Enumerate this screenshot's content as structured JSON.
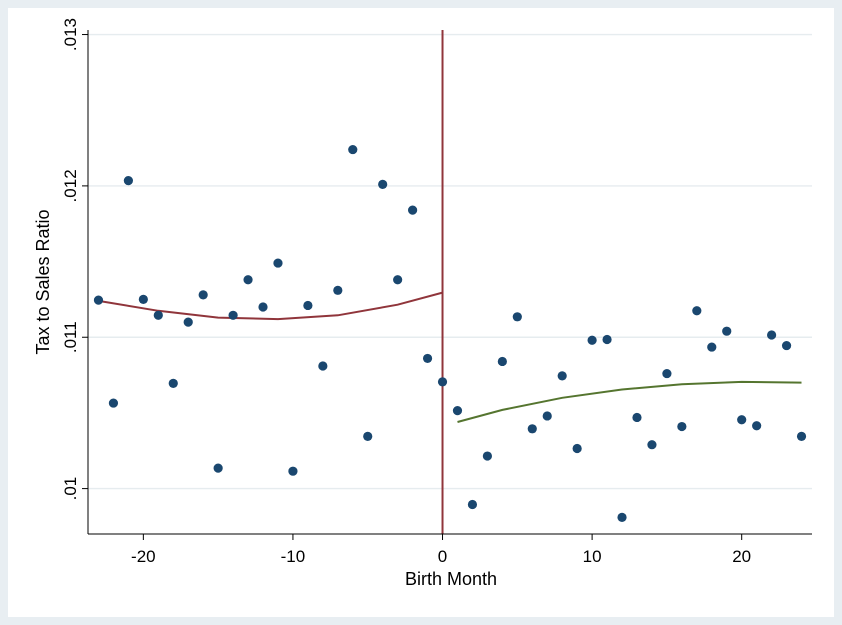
{
  "chart_data": {
    "type": "scatter",
    "title": "",
    "xlabel": "Birth Month",
    "ylabel": "Tax to Sales Ratio",
    "xlim": [
      -23.7,
      24.7
    ],
    "ylim": [
      0.0097,
      0.01303
    ],
    "x_ticks": [
      -20,
      -10,
      0,
      10,
      20
    ],
    "x_tick_labels": [
      "-20",
      "-10",
      "0",
      "10",
      "20"
    ],
    "y_ticks": [
      0.01,
      0.011,
      0.012,
      0.013
    ],
    "y_tick_labels": [
      ".01",
      ".011",
      ".012",
      ".013"
    ],
    "grid": true,
    "legend": "none",
    "cutoff_x": 0,
    "colors": {
      "background": "#e8eef2",
      "plot": "#ffffff",
      "grid": "#e6ecef",
      "points": "#1a476f",
      "cutoff": "#90353b",
      "fit_left": "#90353b",
      "fit_right": "#55752f"
    },
    "points": [
      {
        "x": -23,
        "y": 0.011245
      },
      {
        "x": -22,
        "y": 0.010565
      },
      {
        "x": -21,
        "y": 0.012035
      },
      {
        "x": -20,
        "y": 0.01125
      },
      {
        "x": -19,
        "y": 0.011145
      },
      {
        "x": -18,
        "y": 0.010695
      },
      {
        "x": -17,
        "y": 0.0111
      },
      {
        "x": -16,
        "y": 0.01128
      },
      {
        "x": -15,
        "y": 0.010135
      },
      {
        "x": -14,
        "y": 0.011145
      },
      {
        "x": -13,
        "y": 0.01138
      },
      {
        "x": -12,
        "y": 0.0112
      },
      {
        "x": -11,
        "y": 0.01149
      },
      {
        "x": -10,
        "y": 0.010115
      },
      {
        "x": -9,
        "y": 0.01121
      },
      {
        "x": -8,
        "y": 0.01081
      },
      {
        "x": -7,
        "y": 0.01131
      },
      {
        "x": -6,
        "y": 0.01224
      },
      {
        "x": -5,
        "y": 0.010345
      },
      {
        "x": -4,
        "y": 0.01201
      },
      {
        "x": -3,
        "y": 0.01138
      },
      {
        "x": -2,
        "y": 0.01184
      },
      {
        "x": -1,
        "y": 0.01086
      },
      {
        "x": 0,
        "y": 0.010705
      },
      {
        "x": 1,
        "y": 0.010515
      },
      {
        "x": 2,
        "y": 0.009895
      },
      {
        "x": 3,
        "y": 0.010215
      },
      {
        "x": 4,
        "y": 0.01084
      },
      {
        "x": 5,
        "y": 0.011135
      },
      {
        "x": 6,
        "y": 0.010395
      },
      {
        "x": 7,
        "y": 0.01048
      },
      {
        "x": 8,
        "y": 0.010745
      },
      {
        "x": 9,
        "y": 0.010265
      },
      {
        "x": 10,
        "y": 0.01098
      },
      {
        "x": 11,
        "y": 0.010985
      },
      {
        "x": 12,
        "y": 0.00981
      },
      {
        "x": 13,
        "y": 0.01047
      },
      {
        "x": 14,
        "y": 0.01029
      },
      {
        "x": 15,
        "y": 0.01076
      },
      {
        "x": 16,
        "y": 0.01041
      },
      {
        "x": 17,
        "y": 0.011175
      },
      {
        "x": 18,
        "y": 0.010935
      },
      {
        "x": 19,
        "y": 0.01104
      },
      {
        "x": 20,
        "y": 0.010455
      },
      {
        "x": 21,
        "y": 0.010415
      },
      {
        "x": 22,
        "y": 0.011015
      },
      {
        "x": 23,
        "y": 0.010945
      },
      {
        "x": 24,
        "y": 0.010345
      }
    ],
    "fit_left": {
      "x": [
        -23,
        -19,
        -15,
        -11,
        -7,
        -3,
        0
      ],
      "y": [
        0.01124,
        0.011175,
        0.01113,
        0.01112,
        0.011145,
        0.011215,
        0.011295
      ]
    },
    "fit_right": {
      "x": [
        1,
        4,
        8,
        12,
        16,
        20,
        24
      ],
      "y": [
        0.01044,
        0.01052,
        0.0106,
        0.010655,
        0.01069,
        0.010705,
        0.0107
      ]
    }
  }
}
